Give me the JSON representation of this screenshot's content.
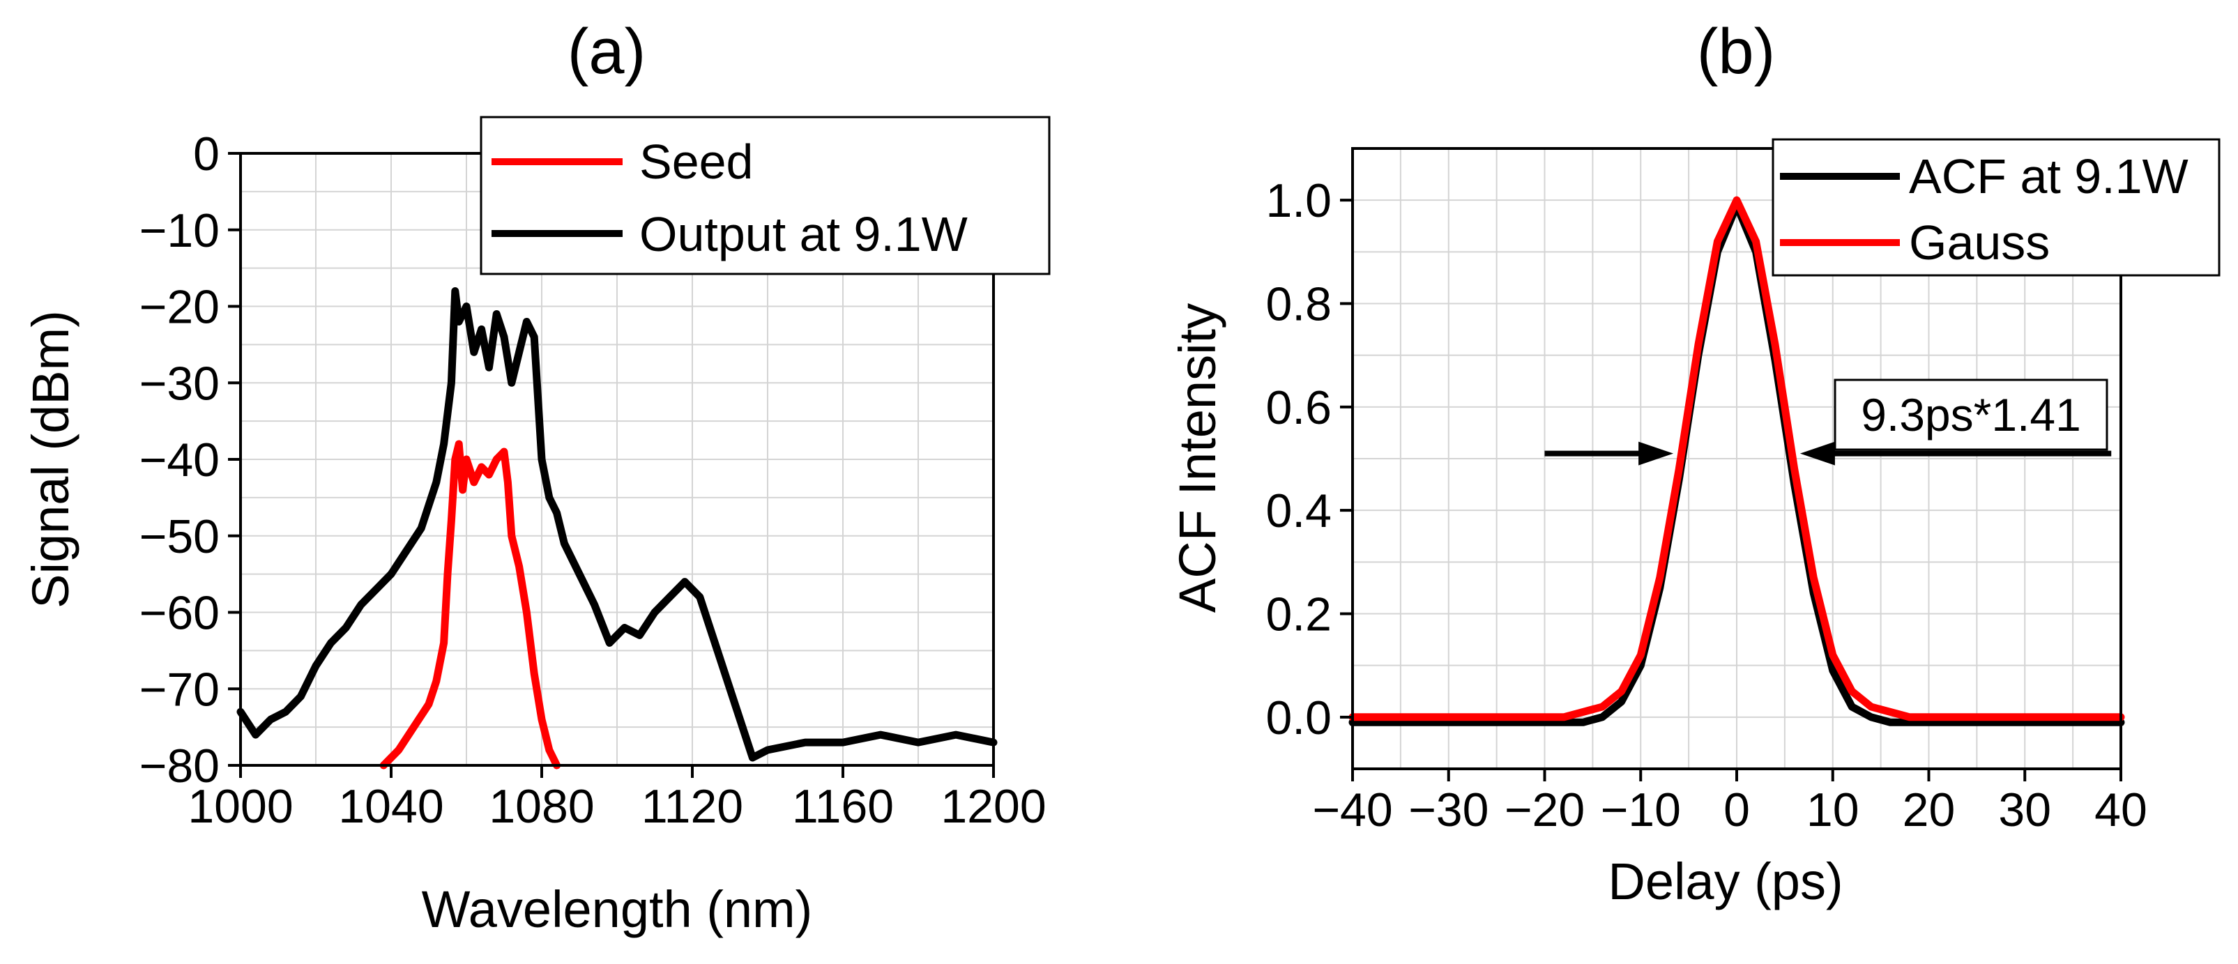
{
  "chart_data": [
    {
      "panel_label": "(a)",
      "type": "line",
      "xlabel": "Wavelength (nm)",
      "ylabel": "Signal (dBm)",
      "xlim": [
        1000,
        1200
      ],
      "ylim": [
        -80,
        0
      ],
      "xticks": [
        1000,
        1040,
        1080,
        1120,
        1160,
        1200
      ],
      "xtick_labels": [
        "1000",
        "1040",
        "1080",
        "1120",
        "1160",
        "1200"
      ],
      "yticks": [
        0,
        -10,
        -20,
        -30,
        -40,
        -50,
        -60,
        -70,
        -80
      ],
      "ytick_labels": [
        "0",
        "−10",
        "−20",
        "−30",
        "−40",
        "−50",
        "−60",
        "−70",
        "−80"
      ],
      "grid": true,
      "legend_position": "top-right",
      "series": [
        {
          "name": "Output at 9.1W",
          "color": "#000000",
          "x": [
            1000,
            1004,
            1008,
            1012,
            1016,
            1020,
            1024,
            1028,
            1032,
            1036,
            1040,
            1044,
            1048,
            1050,
            1052,
            1054,
            1056,
            1057,
            1058,
            1060,
            1062,
            1064,
            1066,
            1068,
            1070,
            1072,
            1074,
            1076,
            1078,
            1080,
            1082,
            1084,
            1086,
            1090,
            1094,
            1098,
            1102,
            1106,
            1110,
            1114,
            1118,
            1120,
            1122,
            1124,
            1126,
            1128,
            1130,
            1132,
            1134,
            1136,
            1140,
            1150,
            1160,
            1170,
            1180,
            1190,
            1200
          ],
          "y": [
            -73,
            -76,
            -74,
            -73,
            -71,
            -67,
            -64,
            -62,
            -59,
            -57,
            -55,
            -52,
            -49,
            -46,
            -43,
            -38,
            -30,
            -18,
            -22,
            -20,
            -26,
            -23,
            -28,
            -21,
            -24,
            -30,
            -26,
            -22,
            -24,
            -40,
            -45,
            -47,
            -51,
            -55,
            -59,
            -64,
            -62,
            -63,
            -60,
            -58,
            -56,
            -57,
            -58,
            -61,
            -64,
            -67,
            -70,
            -73,
            -76,
            -79,
            -78,
            -77,
            -77,
            -76,
            -77,
            -76,
            -77
          ]
        },
        {
          "name": "Seed",
          "color": "#ff0000",
          "x": [
            1038,
            1042,
            1046,
            1050,
            1052,
            1054,
            1055,
            1056,
            1057,
            1058,
            1059,
            1060,
            1062,
            1064,
            1066,
            1068,
            1070,
            1071,
            1072,
            1074,
            1076,
            1078,
            1080,
            1082,
            1084
          ],
          "y": [
            -80,
            -78,
            -75,
            -72,
            -69,
            -64,
            -55,
            -48,
            -40,
            -38,
            -44,
            -40,
            -43,
            -41,
            -42,
            -40,
            -39,
            -43,
            -50,
            -54,
            -60,
            -68,
            -74,
            -78,
            -80
          ]
        }
      ]
    },
    {
      "panel_label": "(b)",
      "type": "line",
      "xlabel": "Delay (ps)",
      "ylabel": "ACF Intensity",
      "xlim": [
        -40,
        40
      ],
      "ylim": [
        -0.1,
        1.1
      ],
      "xticks": [
        -40,
        -30,
        -20,
        -10,
        0,
        10,
        20,
        30,
        40
      ],
      "xtick_labels": [
        "−40",
        "−30",
        "−20",
        "−10",
        "0",
        "10",
        "20",
        "30",
        "40"
      ],
      "yticks": [
        0.0,
        0.2,
        0.4,
        0.6,
        0.8,
        1.0
      ],
      "ytick_labels": [
        "0.0",
        "0.2",
        "0.4",
        "0.6",
        "0.8",
        "1.0"
      ],
      "grid": true,
      "legend_position": "top-right",
      "series": [
        {
          "name": "ACF at 9.1W",
          "color": "#000000",
          "x": [
            -40,
            -30,
            -20,
            -18,
            -16,
            -14,
            -12,
            -10,
            -8,
            -6,
            -4,
            -2,
            0,
            2,
            4,
            6,
            8,
            10,
            12,
            14,
            16,
            18,
            20,
            30,
            40
          ],
          "y": [
            -0.01,
            -0.01,
            -0.01,
            -0.01,
            -0.01,
            0.0,
            0.03,
            0.1,
            0.25,
            0.46,
            0.7,
            0.9,
            0.99,
            0.9,
            0.69,
            0.45,
            0.24,
            0.09,
            0.02,
            0.0,
            -0.01,
            -0.01,
            -0.01,
            -0.01,
            -0.01
          ]
        },
        {
          "name": "Gauss",
          "color": "#ff0000",
          "x": [
            -40,
            -30,
            -20,
            -18,
            -16,
            -14,
            -12,
            -10,
            -8,
            -6,
            -4,
            -2,
            0,
            2,
            4,
            6,
            8,
            10,
            12,
            14,
            16,
            18,
            20,
            30,
            40
          ],
          "y": [
            0.0,
            0.0,
            0.0,
            0.0,
            0.01,
            0.02,
            0.05,
            0.12,
            0.27,
            0.48,
            0.72,
            0.92,
            1.0,
            0.92,
            0.72,
            0.48,
            0.27,
            0.12,
            0.05,
            0.02,
            0.01,
            0.0,
            0.0,
            0.0,
            0.0
          ]
        }
      ],
      "annotations": [
        {
          "text": "9.3ps*1.41",
          "arrow_left_from": -20,
          "arrow_left_to": -6.6,
          "arrow_right_from": 39,
          "arrow_right_to": 6.6,
          "y": 0.51
        }
      ]
    }
  ]
}
